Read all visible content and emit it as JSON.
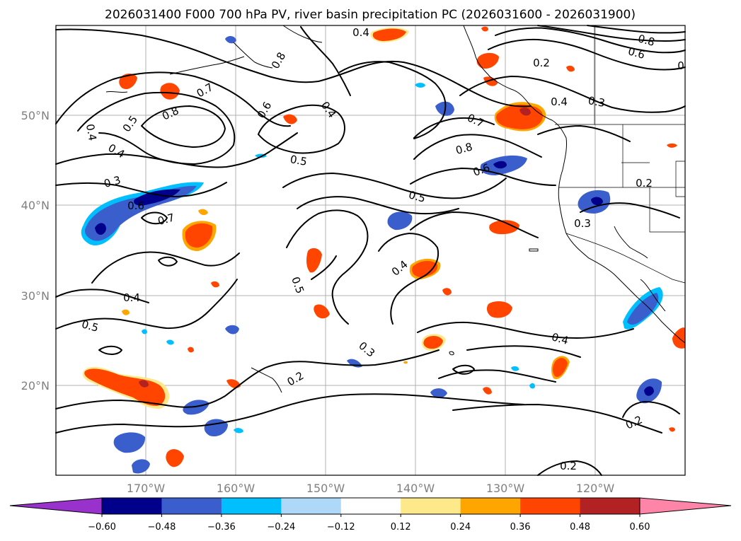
{
  "title": "2026031400 F000 700 hPa PV, river basin precipitation PC (2026031600 - 2026031900)",
  "lat_labels": [
    "50°N",
    "40°N",
    "30°N",
    "20°N"
  ],
  "lon_labels": [
    "170°W",
    "160°W",
    "150°W",
    "140°W",
    "130°W",
    "120°W"
  ],
  "colorbar": {
    "tick_labels": [
      "−0.60",
      "−0.48",
      "−0.36",
      "−0.24",
      "−0.12",
      "0.12",
      "0.24",
      "0.36",
      "0.48",
      "0.60"
    ],
    "colors": [
      "#9932cc",
      "#00008b",
      "#3a5fcd",
      "#00bfff",
      "#add8f7",
      "#ffffff",
      "#fde98a",
      "#ffa500",
      "#ff4500",
      "#b22222",
      "#ff85a8"
    ]
  },
  "contour_labels": [
    "0.4",
    "0.8",
    "0.6",
    "0.2",
    "0",
    "0.7",
    "0.8",
    "0.6",
    "0.4",
    "0.4",
    "0.3",
    "0.5",
    "0.8",
    "0.4",
    "0.4",
    "0.5",
    "0.3",
    "0.7",
    "0.8",
    "0.6",
    "0.2",
    "0.6",
    "0.7",
    "0.5",
    "0.3",
    "0.4",
    "0.5",
    "0.4",
    "0.5",
    "0.3",
    "0.2",
    "0.4",
    "0.2",
    "0.2"
  ],
  "colors": {
    "contour": "#000000",
    "neg_light": "#00bfff",
    "neg_mid": "#3a5fcd",
    "neg_dark": "#00008b",
    "pos_light": "#fde98a",
    "pos_mid": "#ffa500",
    "pos_strong": "#ff4500"
  }
}
